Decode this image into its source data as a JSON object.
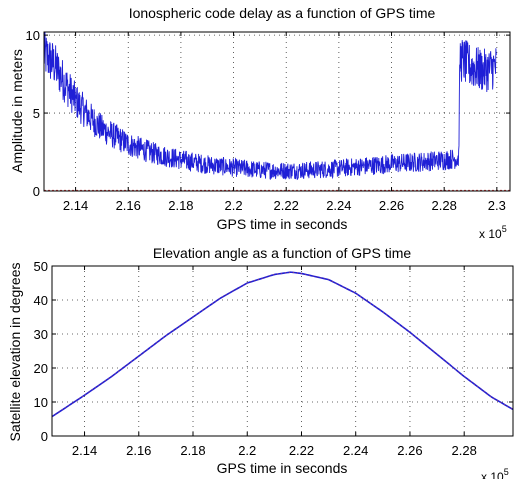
{
  "chart_data": [
    {
      "type": "line",
      "title": "Ionospheric code delay as a function of GPS time",
      "xlabel": "GPS time in seconds",
      "ylabel": "Amplitude in meters",
      "x_multiplier": "x 10",
      "x_multiplier_exp": "5",
      "xlim": [
        2.128,
        2.305
      ],
      "ylim": [
        0,
        10.2
      ],
      "xticks": [
        2.14,
        2.16,
        2.18,
        2.2,
        2.22,
        2.24,
        2.26,
        2.28,
        2.3
      ],
      "xtick_labels": [
        "2.14",
        "2.16",
        "2.18",
        "2.2",
        "2.22",
        "2.24",
        "2.26",
        "2.28",
        "2.3"
      ],
      "yticks": [
        0,
        5,
        10
      ],
      "ytick_labels": [
        "0",
        "5",
        "10"
      ],
      "grid": true,
      "color": "#1f1fd6",
      "series": [
        {
          "x": [
            2.128,
            2.132,
            2.136,
            2.14,
            2.145,
            2.15,
            2.155,
            2.16,
            2.165,
            2.17,
            2.175,
            2.18,
            2.19,
            2.2,
            2.21,
            2.22,
            2.23,
            2.24,
            2.25,
            2.26,
            2.27,
            2.28,
            2.2855,
            2.286,
            2.29,
            2.295,
            2.3
          ],
          "y": [
            8.8,
            8.1,
            6.9,
            5.8,
            4.8,
            4.0,
            3.5,
            3.0,
            2.7,
            2.4,
            2.2,
            2.0,
            1.7,
            1.5,
            1.35,
            1.3,
            1.35,
            1.45,
            1.6,
            1.75,
            1.85,
            2.0,
            2.1,
            8.5,
            8.0,
            7.7,
            8.0
          ]
        }
      ]
    },
    {
      "type": "line",
      "title": "Elevation angle as a function of GPS time",
      "xlabel": "GPS time in seconds",
      "ylabel": "Satellite elevation in degrees",
      "x_multiplier": "x 10",
      "x_multiplier_exp": "5",
      "xlim": [
        2.128,
        2.298
      ],
      "ylim": [
        0,
        50
      ],
      "xticks": [
        2.14,
        2.16,
        2.18,
        2.2,
        2.22,
        2.24,
        2.26,
        2.28
      ],
      "xtick_labels": [
        "2.14",
        "2.16",
        "2.18",
        "2.2",
        "2.22",
        "2.24",
        "2.26",
        "2.28"
      ],
      "yticks": [
        0,
        10,
        20,
        30,
        40,
        50
      ],
      "ytick_labels": [
        "0",
        "10",
        "20",
        "30",
        "40",
        "50"
      ],
      "grid": true,
      "color": "#1f1fd6",
      "series": [
        {
          "x": [
            2.128,
            2.14,
            2.15,
            2.16,
            2.17,
            2.18,
            2.19,
            2.2,
            2.21,
            2.216,
            2.22,
            2.23,
            2.24,
            2.25,
            2.26,
            2.27,
            2.28,
            2.29,
            2.298
          ],
          "y": [
            5.7,
            12.0,
            17.5,
            23.5,
            29.5,
            35.0,
            40.5,
            45.0,
            47.5,
            48.2,
            47.8,
            46.0,
            42.0,
            36.5,
            30.5,
            24.0,
            17.5,
            11.5,
            7.8
          ]
        }
      ]
    }
  ]
}
